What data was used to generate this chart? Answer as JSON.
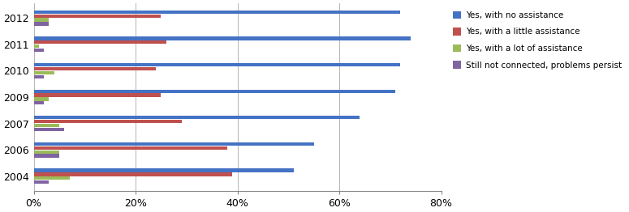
{
  "years": [
    "2012",
    "2011",
    "2010",
    "2009",
    "2007",
    "2006",
    "2004"
  ],
  "series": {
    "Yes, with no assistance": [
      72,
      74,
      72,
      71,
      64,
      55,
      51
    ],
    "Yes, with a little assistance": [
      25,
      26,
      24,
      25,
      29,
      38,
      39
    ],
    "Yes, with a lot of assistance": [
      3,
      1,
      4,
      3,
      5,
      5,
      7
    ],
    "Still not connected, problems persist": [
      3,
      2,
      2,
      2,
      6,
      5,
      3
    ]
  },
  "colors": {
    "Yes, with no assistance": "#4472C4",
    "Yes, with a little assistance": "#C0504D",
    "Yes, with a lot of assistance": "#9BBB59",
    "Still not connected, problems persist": "#8064A2"
  },
  "xlim": [
    0,
    80
  ],
  "xticks": [
    0,
    20,
    40,
    60,
    80
  ],
  "xticklabels": [
    "0%",
    "20%",
    "40%",
    "60%",
    "80%"
  ],
  "bar_height": 0.13,
  "bar_gap": 0.02
}
